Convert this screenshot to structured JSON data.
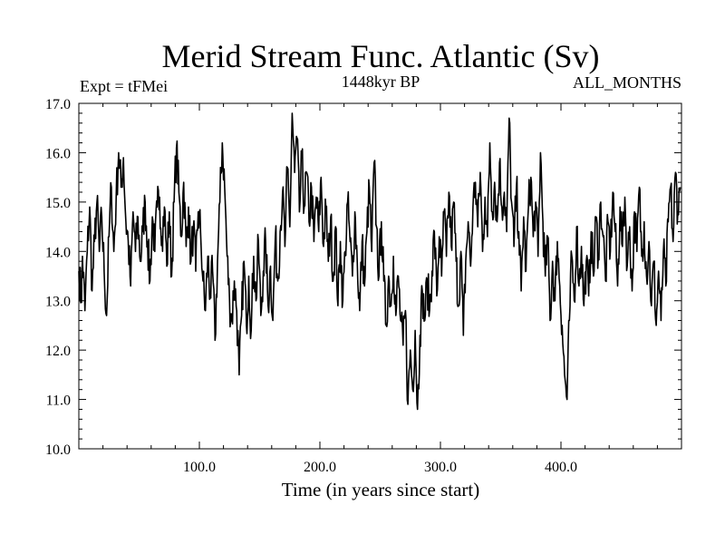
{
  "chart_data": {
    "type": "line",
    "title": "Merid Stream Func. Atlantic (Sv)",
    "subtitle_left": "Expt = tFMei",
    "subtitle_center": "1448kyr BP",
    "subtitle_right": "ALL_MONTHS",
    "xlabel": "Time (in years since start)",
    "ylabel": "",
    "xlim": [
      0,
      500
    ],
    "ylim": [
      10.0,
      17.0
    ],
    "x_ticks": [
      100,
      200,
      300,
      400
    ],
    "x_tick_labels": [
      "100.0",
      "200.0",
      "300.0",
      "400.0"
    ],
    "y_ticks": [
      10,
      11,
      12,
      13,
      14,
      15,
      16,
      17
    ],
    "y_tick_labels": [
      "10.0",
      "11.0",
      "12.0",
      "13.0",
      "14.0",
      "15.0",
      "16.0",
      "17.0"
    ],
    "grid": false,
    "line_color": "#000000",
    "series": [
      {
        "name": "Merid Stream Func. Atlantic",
        "anchors": [
          [
            0,
            13.6
          ],
          [
            2,
            13.0
          ],
          [
            3,
            13.9
          ],
          [
            5,
            12.8
          ],
          [
            7,
            14.0
          ],
          [
            9,
            14.9
          ],
          [
            11,
            13.2
          ],
          [
            13,
            14.2
          ],
          [
            15,
            15.0
          ],
          [
            17,
            14.0
          ],
          [
            19,
            14.7
          ],
          [
            21,
            13.6
          ],
          [
            23,
            12.7
          ],
          [
            25,
            14.3
          ],
          [
            27,
            15.3
          ],
          [
            29,
            14.0
          ],
          [
            31,
            15.1
          ],
          [
            33,
            16.0
          ],
          [
            35,
            15.3
          ],
          [
            37,
            15.9
          ],
          [
            39,
            14.6
          ],
          [
            41,
            14.2
          ],
          [
            43,
            13.3
          ],
          [
            45,
            14.8
          ],
          [
            47,
            14.0
          ],
          [
            49,
            14.7
          ],
          [
            51,
            13.8
          ],
          [
            53,
            14.4
          ],
          [
            55,
            15.0
          ],
          [
            57,
            14.2
          ],
          [
            59,
            13.4
          ],
          [
            61,
            14.7
          ],
          [
            63,
            14.0
          ],
          [
            65,
            14.9
          ],
          [
            67,
            15.1
          ],
          [
            69,
            14.3
          ],
          [
            71,
            14.9
          ],
          [
            73,
            13.7
          ],
          [
            75,
            14.8
          ],
          [
            77,
            13.5
          ],
          [
            79,
            15.0
          ],
          [
            81,
            16.1
          ],
          [
            83,
            15.2
          ],
          [
            85,
            14.3
          ],
          [
            87,
            15.4
          ],
          [
            89,
            14.1
          ],
          [
            91,
            14.9
          ],
          [
            93,
            13.8
          ],
          [
            95,
            14.5
          ],
          [
            97,
            13.6
          ],
          [
            99,
            14.8
          ],
          [
            101,
            14.4
          ],
          [
            103,
            13.4
          ],
          [
            105,
            12.8
          ],
          [
            107,
            13.9
          ],
          [
            109,
            13.1
          ],
          [
            111,
            13.6
          ],
          [
            113,
            12.2
          ],
          [
            115,
            13.8
          ],
          [
            117,
            15.0
          ],
          [
            119,
            16.2
          ],
          [
            121,
            15.3
          ],
          [
            123,
            13.9
          ],
          [
            125,
            13.0
          ],
          [
            127,
            12.6
          ],
          [
            129,
            13.4
          ],
          [
            131,
            12.8
          ],
          [
            133,
            11.5
          ],
          [
            135,
            12.7
          ],
          [
            137,
            13.8
          ],
          [
            139,
            12.5
          ],
          [
            141,
            13.5
          ],
          [
            143,
            12.4
          ],
          [
            145,
            13.9
          ],
          [
            147,
            13.0
          ],
          [
            149,
            14.2
          ],
          [
            151,
            12.7
          ],
          [
            153,
            13.6
          ],
          [
            155,
            14.2
          ],
          [
            157,
            12.9
          ],
          [
            159,
            13.7
          ],
          [
            161,
            12.6
          ],
          [
            163,
            14.3
          ],
          [
            165,
            13.4
          ],
          [
            167,
            14.4
          ],
          [
            169,
            15.2
          ],
          [
            171,
            14.1
          ],
          [
            173,
            15.7
          ],
          [
            175,
            14.5
          ],
          [
            177,
            16.8
          ],
          [
            179,
            15.6
          ],
          [
            181,
            16.3
          ],
          [
            183,
            14.8
          ],
          [
            185,
            15.9
          ],
          [
            187,
            14.9
          ],
          [
            189,
            15.6
          ],
          [
            191,
            14.6
          ],
          [
            193,
            15.3
          ],
          [
            195,
            14.2
          ],
          [
            197,
            15.1
          ],
          [
            199,
            14.4
          ],
          [
            201,
            15.5
          ],
          [
            203,
            14.1
          ],
          [
            205,
            14.9
          ],
          [
            207,
            13.8
          ],
          [
            209,
            14.7
          ],
          [
            211,
            13.4
          ],
          [
            213,
            14.5
          ],
          [
            215,
            12.9
          ],
          [
            217,
            14.2
          ],
          [
            219,
            13.0
          ],
          [
            221,
            14.0
          ],
          [
            223,
            15.0
          ],
          [
            225,
            14.2
          ],
          [
            227,
            13.5
          ],
          [
            229,
            14.8
          ],
          [
            231,
            13.8
          ],
          [
            233,
            12.8
          ],
          [
            235,
            14.2
          ],
          [
            237,
            13.3
          ],
          [
            239,
            14.4
          ],
          [
            241,
            15.3
          ],
          [
            243,
            14.0
          ],
          [
            245,
            15.8
          ],
          [
            247,
            14.5
          ],
          [
            249,
            13.5
          ],
          [
            251,
            14.6
          ],
          [
            253,
            13.4
          ],
          [
            255,
            12.5
          ],
          [
            257,
            13.5
          ],
          [
            259,
            12.9
          ],
          [
            261,
            13.9
          ],
          [
            263,
            12.7
          ],
          [
            265,
            13.5
          ],
          [
            267,
            12.6
          ],
          [
            269,
            12.1
          ],
          [
            271,
            12.8
          ],
          [
            273,
            10.9
          ],
          [
            275,
            12.0
          ],
          [
            277,
            11.2
          ],
          [
            279,
            12.4
          ],
          [
            281,
            10.8
          ],
          [
            283,
            12.3
          ],
          [
            285,
            13.2
          ],
          [
            287,
            12.6
          ],
          [
            289,
            13.4
          ],
          [
            291,
            12.8
          ],
          [
            293,
            13.6
          ],
          [
            295,
            14.4
          ],
          [
            297,
            13.1
          ],
          [
            299,
            14.3
          ],
          [
            301,
            13.5
          ],
          [
            303,
            14.8
          ],
          [
            305,
            13.9
          ],
          [
            307,
            15.2
          ],
          [
            309,
            14.1
          ],
          [
            311,
            15.0
          ],
          [
            313,
            13.8
          ],
          [
            315,
            12.9
          ],
          [
            317,
            14.0
          ],
          [
            319,
            12.3
          ],
          [
            321,
            13.8
          ],
          [
            323,
            14.6
          ],
          [
            325,
            13.7
          ],
          [
            327,
            14.9
          ],
          [
            329,
            15.4
          ],
          [
            331,
            14.5
          ],
          [
            333,
            15.6
          ],
          [
            335,
            14.0
          ],
          [
            337,
            15.1
          ],
          [
            339,
            14.3
          ],
          [
            341,
            16.2
          ],
          [
            343,
            14.8
          ],
          [
            345,
            15.4
          ],
          [
            347,
            14.6
          ],
          [
            349,
            15.8
          ],
          [
            351,
            14.9
          ],
          [
            353,
            15.2
          ],
          [
            355,
            14.4
          ],
          [
            357,
            16.7
          ],
          [
            359,
            15.0
          ],
          [
            361,
            14.1
          ],
          [
            363,
            15.3
          ],
          [
            365,
            14.4
          ],
          [
            367,
            13.2
          ],
          [
            369,
            14.7
          ],
          [
            371,
            13.6
          ],
          [
            373,
            14.9
          ],
          [
            375,
            15.5
          ],
          [
            377,
            14.3
          ],
          [
            379,
            15.0
          ],
          [
            381,
            13.9
          ],
          [
            383,
            16.0
          ],
          [
            385,
            14.6
          ],
          [
            387,
            13.5
          ],
          [
            389,
            14.3
          ],
          [
            391,
            12.6
          ],
          [
            393,
            13.8
          ],
          [
            395,
            13.0
          ],
          [
            397,
            14.2
          ],
          [
            399,
            13.3
          ],
          [
            401,
            12.5
          ],
          [
            403,
            11.5
          ],
          [
            405,
            11.0
          ],
          [
            407,
            12.6
          ],
          [
            409,
            13.9
          ],
          [
            411,
            13.0
          ],
          [
            413,
            14.5
          ],
          [
            415,
            13.3
          ],
          [
            417,
            14.1
          ],
          [
            419,
            12.9
          ],
          [
            421,
            13.8
          ],
          [
            423,
            13.1
          ],
          [
            425,
            14.4
          ],
          [
            427,
            13.5
          ],
          [
            429,
            14.7
          ],
          [
            431,
            13.9
          ],
          [
            433,
            15.0
          ],
          [
            435,
            14.3
          ],
          [
            437,
            13.4
          ],
          [
            439,
            14.6
          ],
          [
            441,
            14.0
          ],
          [
            443,
            15.2
          ],
          [
            445,
            14.4
          ],
          [
            447,
            13.3
          ],
          [
            449,
            14.9
          ],
          [
            451,
            14.1
          ],
          [
            453,
            15.1
          ],
          [
            455,
            13.7
          ],
          [
            457,
            14.5
          ],
          [
            459,
            13.2
          ],
          [
            461,
            14.8
          ],
          [
            463,
            14.0
          ],
          [
            465,
            15.3
          ],
          [
            467,
            13.9
          ],
          [
            469,
            14.6
          ],
          [
            471,
            13.5
          ],
          [
            473,
            14.2
          ],
          [
            475,
            12.9
          ],
          [
            477,
            13.8
          ],
          [
            479,
            12.5
          ],
          [
            481,
            13.6
          ],
          [
            483,
            12.6
          ],
          [
            485,
            14.0
          ],
          [
            487,
            13.3
          ],
          [
            489,
            14.6
          ],
          [
            491,
            15.3
          ],
          [
            493,
            14.2
          ],
          [
            495,
            15.6
          ],
          [
            497,
            14.8
          ],
          [
            499,
            15.3
          ]
        ],
        "ripple_amplitude": 0.45
      }
    ]
  }
}
